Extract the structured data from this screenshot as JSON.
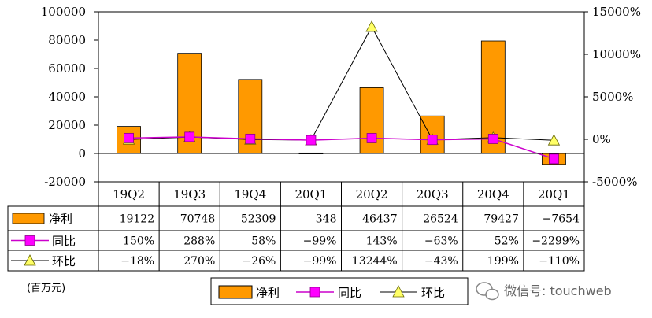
{
  "chart_data": {
    "type": "bar",
    "categories": [
      "19Q2",
      "19Q3",
      "19Q4",
      "20Q1",
      "20Q2",
      "20Q3",
      "20Q4",
      "20Q1"
    ],
    "series": [
      {
        "name": "净利",
        "kind": "bar",
        "axis": "left",
        "values": [
          19122,
          70748,
          52309,
          348,
          46437,
          26524,
          79427,
          -7654
        ],
        "labels": [
          "19122",
          "70748",
          "52309",
          "348",
          "46437",
          "26524",
          "79427",
          "−7654"
        ],
        "color": "#ff9900"
      },
      {
        "name": "同比",
        "kind": "line",
        "axis": "right",
        "marker": "square",
        "values": [
          150,
          288,
          58,
          -99,
          143,
          -63,
          52,
          -2299
        ],
        "labels": [
          "150%",
          "288%",
          "58%",
          "−99%",
          "143%",
          "−63%",
          "52%",
          "−2299%"
        ],
        "color": "#cc00cc"
      },
      {
        "name": "环比",
        "kind": "line",
        "axis": "right",
        "marker": "triangle",
        "values": [
          -18,
          270,
          -26,
          -99,
          13244,
          -43,
          199,
          -110
        ],
        "labels": [
          "−18%",
          "270%",
          "−26%",
          "−99%",
          "13244%",
          "−43%",
          "199%",
          "−110%"
        ],
        "color": "#ffff66"
      }
    ],
    "y_left": {
      "ylim": [
        -20000,
        100000
      ],
      "ticks": [
        "100000",
        "80000",
        "60000",
        "40000",
        "20000",
        "0",
        "-20000"
      ],
      "tick_values": [
        100000,
        80000,
        60000,
        40000,
        20000,
        0,
        -20000
      ]
    },
    "y_right": {
      "ylim": [
        -5000,
        15000
      ],
      "ticks": [
        "15000%",
        "10000%",
        "5000%",
        "0%",
        "-5000%"
      ],
      "tick_values": [
        15000,
        10000,
        5000,
        0,
        -5000
      ]
    },
    "grid": false,
    "legend_position": "bottom",
    "unit_note": "(百万元)"
  },
  "legend": {
    "items": [
      "净利",
      "同比",
      "环比"
    ]
  },
  "watermark": "微信号: touchweb"
}
